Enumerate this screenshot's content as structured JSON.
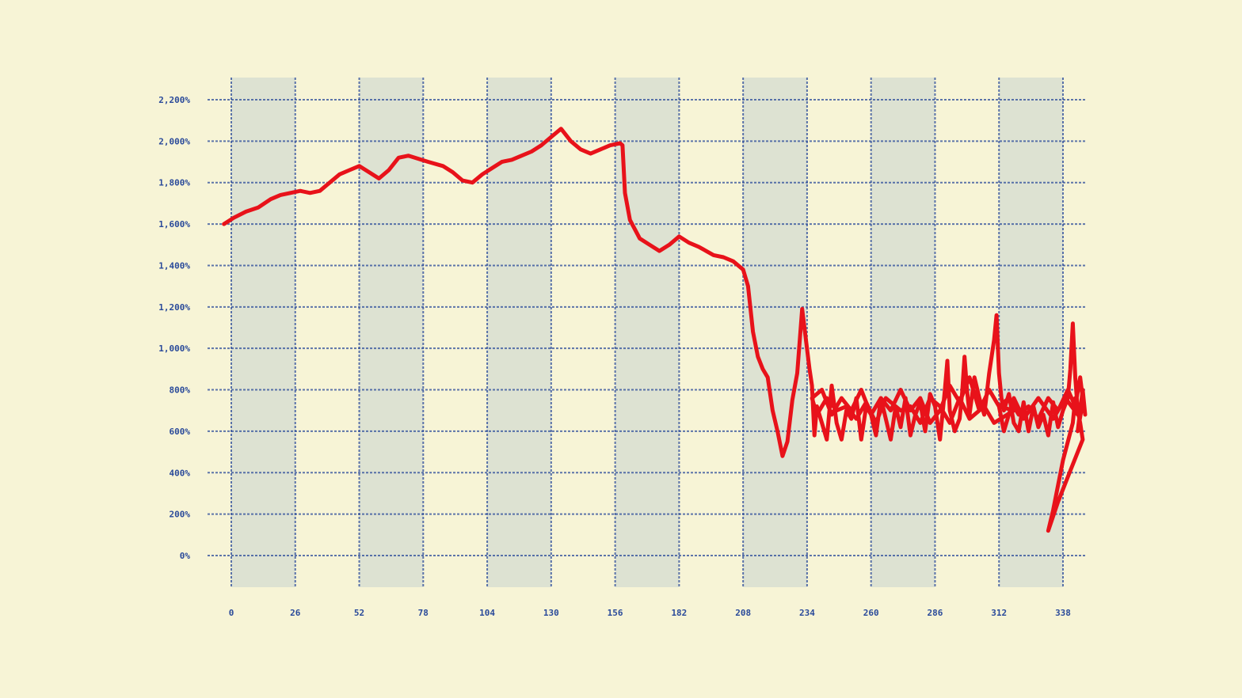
{
  "chart_data": {
    "type": "line",
    "title": "",
    "xlabel": "",
    "ylabel": "",
    "y_ticks": [
      "0%",
      "200%",
      "400%",
      "600%",
      "800%",
      "1,000%",
      "1,200%",
      "1,400%",
      "1,600%",
      "1,800%",
      "2,000%",
      "2,200%"
    ],
    "x_ticks": [
      "0",
      "26",
      "52",
      "78",
      "104",
      "130",
      "156",
      "182",
      "208",
      "234",
      "260",
      "286",
      "312",
      "338"
    ],
    "x_tick_values": [
      0,
      26,
      52,
      78,
      104,
      130,
      156,
      182,
      208,
      234,
      260,
      286,
      312,
      338
    ],
    "ylim": [
      0,
      2200
    ],
    "xlim": [
      0,
      338
    ],
    "grid": true,
    "alternating_column_shading": true,
    "colors": {
      "background": "#f7f4d6",
      "grid": "#2a4a9a",
      "shade": "#c9d4cf",
      "line": "#e8121a"
    },
    "series": [
      {
        "name": "",
        "points": [
          [
            -3,
            1600
          ],
          [
            1,
            1630
          ],
          [
            6,
            1660
          ],
          [
            11,
            1680
          ],
          [
            16,
            1720
          ],
          [
            20,
            1740
          ],
          [
            24,
            1750
          ],
          [
            28,
            1760
          ],
          [
            32,
            1750
          ],
          [
            36,
            1760
          ],
          [
            40,
            1800
          ],
          [
            44,
            1840
          ],
          [
            48,
            1860
          ],
          [
            52,
            1880
          ],
          [
            56,
            1850
          ],
          [
            60,
            1820
          ],
          [
            64,
            1860
          ],
          [
            68,
            1920
          ],
          [
            72,
            1930
          ],
          [
            76,
            1915
          ],
          [
            80,
            1900
          ],
          [
            86,
            1880
          ],
          [
            90,
            1850
          ],
          [
            94,
            1810
          ],
          [
            98,
            1800
          ],
          [
            102,
            1840
          ],
          [
            106,
            1870
          ],
          [
            110,
            1900
          ],
          [
            114,
            1910
          ],
          [
            118,
            1930
          ],
          [
            122,
            1950
          ],
          [
            126,
            1980
          ],
          [
            130,
            2020
          ],
          [
            134,
            2060
          ],
          [
            138,
            2000
          ],
          [
            142,
            1960
          ],
          [
            146,
            1940
          ],
          [
            150,
            1960
          ],
          [
            154,
            1980
          ],
          [
            158,
            1990
          ],
          [
            159,
            1980
          ],
          [
            160,
            1750
          ],
          [
            162,
            1620
          ],
          [
            166,
            1530
          ],
          [
            170,
            1500
          ],
          [
            174,
            1470
          ],
          [
            178,
            1500
          ],
          [
            182,
            1540
          ],
          [
            186,
            1510
          ],
          [
            190,
            1490
          ],
          [
            196,
            1450
          ],
          [
            200,
            1440
          ],
          [
            204,
            1420
          ],
          [
            208,
            1380
          ],
          [
            210,
            1300
          ],
          [
            212,
            1080
          ],
          [
            214,
            960
          ],
          [
            216,
            900
          ],
          [
            218,
            860
          ],
          [
            220,
            700
          ],
          [
            222,
            600
          ],
          [
            224,
            480
          ],
          [
            226,
            550
          ],
          [
            228,
            750
          ],
          [
            230,
            880
          ],
          [
            232,
            1190
          ],
          [
            235,
            900
          ],
          [
            236,
            820
          ],
          [
            237,
            580
          ],
          [
            238,
            720
          ],
          [
            240,
            640
          ],
          [
            242,
            560
          ],
          [
            244,
            820
          ],
          [
            246,
            640
          ],
          [
            248,
            560
          ],
          [
            250,
            700
          ],
          [
            252,
            660
          ],
          [
            254,
            760
          ],
          [
            256,
            560
          ],
          [
            258,
            720
          ],
          [
            260,
            680
          ],
          [
            262,
            580
          ],
          [
            264,
            760
          ],
          [
            266,
            660
          ],
          [
            268,
            560
          ],
          [
            270,
            720
          ],
          [
            272,
            620
          ],
          [
            274,
            760
          ],
          [
            276,
            580
          ],
          [
            278,
            680
          ],
          [
            280,
            740
          ],
          [
            282,
            600
          ],
          [
            284,
            780
          ],
          [
            286,
            720
          ],
          [
            288,
            560
          ],
          [
            290,
            800
          ],
          [
            291,
            940
          ],
          [
            292,
            700
          ],
          [
            294,
            600
          ],
          [
            296,
            660
          ],
          [
            297,
            780
          ],
          [
            298,
            960
          ],
          [
            299,
            800
          ],
          [
            300,
            680
          ],
          [
            302,
            860
          ],
          [
            304,
            760
          ],
          [
            306,
            680
          ],
          [
            308,
            880
          ],
          [
            310,
            1040
          ],
          [
            311,
            1160
          ],
          [
            312,
            880
          ],
          [
            313,
            760
          ],
          [
            314,
            700
          ],
          [
            316,
            780
          ],
          [
            318,
            640
          ],
          [
            320,
            600
          ],
          [
            322,
            740
          ],
          [
            324,
            600
          ],
          [
            326,
            720
          ],
          [
            328,
            620
          ],
          [
            330,
            680
          ],
          [
            332,
            580
          ],
          [
            334,
            740
          ],
          [
            336,
            620
          ],
          [
            338,
            700
          ],
          [
            340,
            760
          ],
          [
            341,
            900
          ],
          [
            342,
            1120
          ],
          [
            343,
            860
          ],
          [
            344,
            700
          ],
          [
            345,
            640
          ],
          [
            346,
            560
          ],
          [
            340,
            380
          ],
          [
            336,
            260
          ],
          [
            332,
            120
          ],
          [
            334,
            220
          ],
          [
            338,
            460
          ],
          [
            342,
            640
          ],
          [
            343,
            760
          ],
          [
            344,
            680
          ],
          [
            339,
            760
          ],
          [
            334,
            660
          ],
          [
            328,
            760
          ],
          [
            322,
            660
          ],
          [
            318,
            760
          ],
          [
            314,
            600
          ],
          [
            312,
            720
          ],
          [
            318,
            700
          ],
          [
            310,
            640
          ],
          [
            306,
            720
          ],
          [
            300,
            660
          ],
          [
            296,
            760
          ],
          [
            292,
            640
          ],
          [
            288,
            720
          ],
          [
            284,
            760
          ],
          [
            280,
            640
          ],
          [
            276,
            720
          ],
          [
            272,
            700
          ],
          [
            266,
            760
          ],
          [
            262,
            640
          ],
          [
            258,
            740
          ],
          [
            254,
            660
          ],
          [
            250,
            720
          ],
          [
            246,
            700
          ],
          [
            242,
            760
          ],
          [
            238,
            680
          ],
          [
            236,
            760
          ],
          [
            240,
            800
          ],
          [
            244,
            680
          ],
          [
            248,
            760
          ],
          [
            252,
            700
          ],
          [
            256,
            800
          ],
          [
            260,
            680
          ],
          [
            264,
            760
          ],
          [
            268,
            700
          ],
          [
            272,
            800
          ],
          [
            276,
            700
          ],
          [
            280,
            760
          ],
          [
            284,
            640
          ],
          [
            288,
            700
          ],
          [
            292,
            820
          ],
          [
            296,
            740
          ],
          [
            300,
            860
          ],
          [
            304,
            700
          ],
          [
            308,
            800
          ],
          [
            312,
            720
          ],
          [
            316,
            760
          ],
          [
            320,
            680
          ],
          [
            324,
            720
          ],
          [
            328,
            660
          ],
          [
            332,
            760
          ],
          [
            336,
            700
          ],
          [
            340,
            800
          ],
          [
            343,
            720
          ],
          [
            345,
            860
          ],
          [
            346,
            760
          ],
          [
            347,
            680
          ],
          [
            346,
            800
          ],
          [
            344,
            600
          ],
          [
            346,
            740
          ]
        ]
      }
    ]
  }
}
